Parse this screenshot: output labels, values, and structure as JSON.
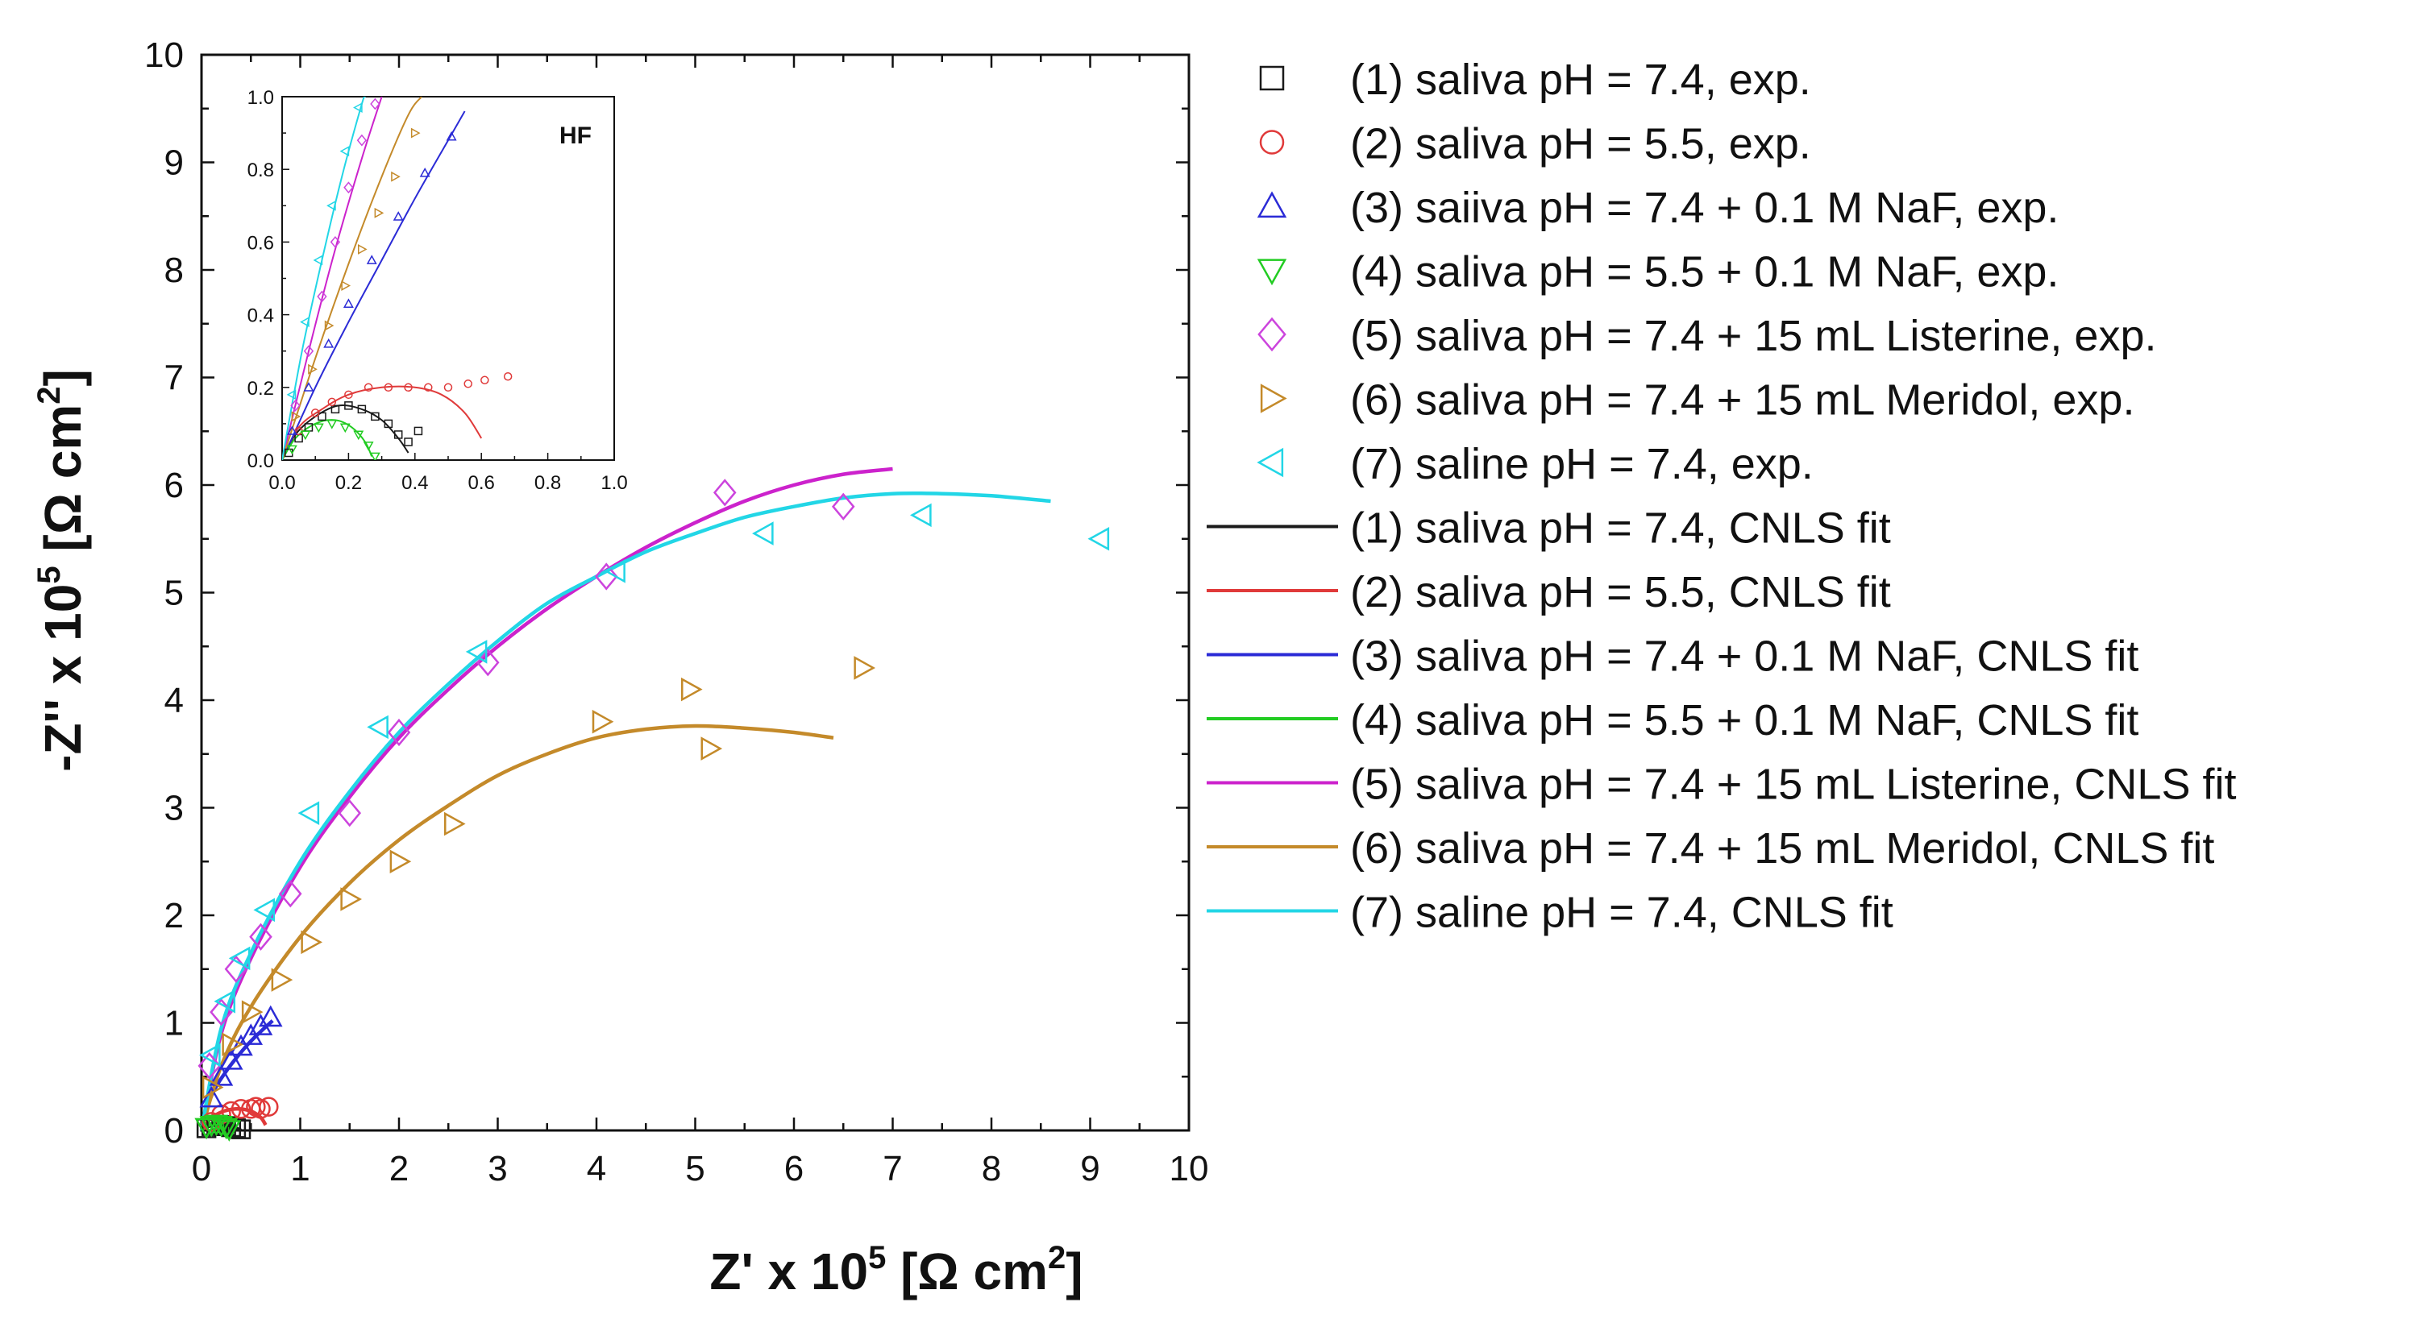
{
  "chart_data": {
    "type": "scatter",
    "title": "",
    "xlabel": "Z' x 10",
    "ylabel": "-Z'' x 10",
    "exponent": "5",
    "unit": "[Ω cm",
    "unit_power": "2",
    "unit_close": "]",
    "xlim": [
      0,
      10
    ],
    "ylim": [
      0,
      10
    ],
    "xticks": [
      "0",
      "1",
      "2",
      "3",
      "4",
      "5",
      "6",
      "7",
      "8",
      "9",
      "10"
    ],
    "yticks": [
      "0",
      "1",
      "2",
      "3",
      "4",
      "5",
      "6",
      "7",
      "8",
      "9",
      "10"
    ],
    "legend_position": "right",
    "exp_series": [
      {
        "name": "(1) saliva pH = 7.4, exp.",
        "marker": "square",
        "color": "#1a1a1a",
        "points": [
          [
            0.05,
            0.02
          ],
          [
            0.1,
            0.04
          ],
          [
            0.15,
            0.05
          ],
          [
            0.2,
            0.05
          ],
          [
            0.25,
            0.04
          ],
          [
            0.3,
            0.03
          ],
          [
            0.35,
            0.02
          ],
          [
            0.4,
            0.01
          ]
        ]
      },
      {
        "name": "(2) saliva pH = 5.5, exp.",
        "marker": "circle",
        "color": "#e03a3a",
        "points": [
          [
            0.1,
            0.08
          ],
          [
            0.2,
            0.15
          ],
          [
            0.3,
            0.18
          ],
          [
            0.4,
            0.2
          ],
          [
            0.5,
            0.2
          ],
          [
            0.55,
            0.22
          ],
          [
            0.6,
            0.2
          ],
          [
            0.68,
            0.22
          ]
        ]
      },
      {
        "name": "(3) saiiva pH = 7.4 + 0.1 M NaF, exp.",
        "marker": "triangle-up",
        "color": "#2b2bd6",
        "points": [
          [
            0.1,
            0.3
          ],
          [
            0.2,
            0.5
          ],
          [
            0.3,
            0.65
          ],
          [
            0.4,
            0.78
          ],
          [
            0.5,
            0.88
          ],
          [
            0.6,
            0.97
          ],
          [
            0.7,
            1.05
          ]
        ]
      },
      {
        "name": "(4) saliva pH = 5.5 + 0.1 M NaF, exp.",
        "marker": "triangle-down",
        "color": "#22cc22",
        "points": [
          [
            0.05,
            0.03
          ],
          [
            0.1,
            0.05
          ],
          [
            0.15,
            0.06
          ],
          [
            0.2,
            0.05
          ],
          [
            0.25,
            0.03
          ],
          [
            0.28,
            0.01
          ]
        ]
      },
      {
        "name": "(5) saliva pH = 7.4 + 15 mL Listerine, exp.",
        "marker": "diamond",
        "color": "#cc44dd",
        "points": [
          [
            0.08,
            0.6
          ],
          [
            0.2,
            1.1
          ],
          [
            0.35,
            1.5
          ],
          [
            0.6,
            1.8
          ],
          [
            0.9,
            2.2
          ],
          [
            1.5,
            2.95
          ],
          [
            2.0,
            3.7
          ],
          [
            2.9,
            4.35
          ],
          [
            4.1,
            5.15
          ],
          [
            5.3,
            5.93
          ],
          [
            6.5,
            5.8
          ]
        ]
      },
      {
        "name": "(6) saliva pH = 7.4 + 15 mL Meridol, exp.",
        "marker": "triangle-right",
        "color": "#c48a2a",
        "points": [
          [
            0.1,
            0.4
          ],
          [
            0.3,
            0.8
          ],
          [
            0.5,
            1.1
          ],
          [
            0.8,
            1.4
          ],
          [
            1.1,
            1.75
          ],
          [
            1.5,
            2.15
          ],
          [
            2.0,
            2.5
          ],
          [
            2.55,
            2.85
          ],
          [
            4.05,
            3.8
          ],
          [
            4.95,
            4.1
          ],
          [
            5.15,
            3.55
          ],
          [
            6.7,
            4.3
          ]
        ]
      },
      {
        "name": "(7) saline pH = 7.4, exp.",
        "marker": "triangle-left",
        "color": "#22d6e6",
        "points": [
          [
            0.1,
            0.7
          ],
          [
            0.25,
            1.2
          ],
          [
            0.4,
            1.6
          ],
          [
            0.65,
            2.05
          ],
          [
            1.1,
            2.95
          ],
          [
            1.8,
            3.75
          ],
          [
            2.8,
            4.45
          ],
          [
            4.2,
            5.2
          ],
          [
            5.7,
            5.55
          ],
          [
            7.3,
            5.72
          ],
          [
            9.1,
            5.5
          ]
        ]
      }
    ],
    "fit_series": [
      {
        "name": "(1) saliva pH = 7.4, CNLS fit",
        "color": "#1a1a1a",
        "points": [
          [
            0,
            0
          ],
          [
            0.05,
            0.03
          ],
          [
            0.12,
            0.05
          ],
          [
            0.2,
            0.055
          ],
          [
            0.28,
            0.045
          ],
          [
            0.35,
            0.02
          ],
          [
            0.4,
            0
          ]
        ]
      },
      {
        "name": "(2) saliva pH = 5.5, CNLS fit",
        "color": "#e03a3a",
        "points": [
          [
            0,
            0
          ],
          [
            0.08,
            0.1
          ],
          [
            0.2,
            0.17
          ],
          [
            0.35,
            0.2
          ],
          [
            0.5,
            0.18
          ],
          [
            0.6,
            0.12
          ],
          [
            0.65,
            0.05
          ]
        ]
      },
      {
        "name": "(3) saliva pH = 7.4 + 0.1 M NaF, CNLS fit",
        "color": "#2b2bd6",
        "points": [
          [
            0,
            0
          ],
          [
            0.1,
            0.32
          ],
          [
            0.25,
            0.55
          ],
          [
            0.45,
            0.78
          ],
          [
            0.6,
            0.92
          ],
          [
            0.72,
            1.02
          ]
        ]
      },
      {
        "name": "(4) saliva pH = 5.5 + 0.1 M NaF, CNLS fit",
        "color": "#22cc22",
        "points": [
          [
            0,
            0
          ],
          [
            0.05,
            0.04
          ],
          [
            0.12,
            0.06
          ],
          [
            0.2,
            0.05
          ],
          [
            0.26,
            0.02
          ],
          [
            0.28,
            0
          ]
        ]
      },
      {
        "name": "(5) saliva pH = 7.4 + 15 mL Listerine, CNLS fit",
        "color": "#cc22cc",
        "points": [
          [
            0,
            0
          ],
          [
            0.2,
            0.9
          ],
          [
            0.5,
            1.6
          ],
          [
            1,
            2.45
          ],
          [
            1.5,
            3.1
          ],
          [
            2,
            3.65
          ],
          [
            2.5,
            4.1
          ],
          [
            3,
            4.5
          ],
          [
            3.5,
            4.85
          ],
          [
            4,
            5.15
          ],
          [
            4.5,
            5.42
          ],
          [
            5,
            5.65
          ],
          [
            5.5,
            5.85
          ],
          [
            6,
            6.0
          ],
          [
            6.5,
            6.1
          ],
          [
            7,
            6.15
          ]
        ]
      },
      {
        "name": "(6) saliva pH = 7.4 + 15 mL Meridol, CNLS fit",
        "color": "#c48a2a",
        "points": [
          [
            0,
            0
          ],
          [
            0.2,
            0.6
          ],
          [
            0.5,
            1.15
          ],
          [
            1,
            1.8
          ],
          [
            1.5,
            2.3
          ],
          [
            2,
            2.7
          ],
          [
            2.5,
            3.02
          ],
          [
            3,
            3.3
          ],
          [
            3.5,
            3.5
          ],
          [
            4,
            3.65
          ],
          [
            4.5,
            3.73
          ],
          [
            5,
            3.76
          ],
          [
            5.5,
            3.74
          ],
          [
            6,
            3.7
          ],
          [
            6.4,
            3.65
          ]
        ]
      },
      {
        "name": "(7) saline pH = 7.4, CNLS fit",
        "color": "#22d6e6",
        "points": [
          [
            0,
            0
          ],
          [
            0.2,
            0.95
          ],
          [
            0.5,
            1.65
          ],
          [
            1,
            2.5
          ],
          [
            1.5,
            3.15
          ],
          [
            2,
            3.7
          ],
          [
            2.5,
            4.15
          ],
          [
            3,
            4.55
          ],
          [
            3.5,
            4.9
          ],
          [
            4,
            5.15
          ],
          [
            4.5,
            5.38
          ],
          [
            5,
            5.55
          ],
          [
            5.5,
            5.7
          ],
          [
            6,
            5.8
          ],
          [
            6.5,
            5.88
          ],
          [
            7,
            5.92
          ],
          [
            7.5,
            5.92
          ],
          [
            8,
            5.9
          ],
          [
            8.6,
            5.85
          ]
        ]
      }
    ],
    "inset": {
      "label": "HF",
      "xlim": [
        0,
        1.0
      ],
      "ylim": [
        0,
        1.0
      ],
      "xticks": [
        "0.0",
        "0.2",
        "0.4",
        "0.6",
        "0.8",
        "1.0"
      ],
      "yticks": [
        "0.0",
        "0.2",
        "0.4",
        "0.6",
        "0.8",
        "1.0"
      ],
      "exp_series": [
        {
          "marker": "square",
          "color": "#1a1a1a",
          "points": [
            [
              0.02,
              0.02
            ],
            [
              0.05,
              0.06
            ],
            [
              0.08,
              0.09
            ],
            [
              0.12,
              0.12
            ],
            [
              0.16,
              0.14
            ],
            [
              0.2,
              0.15
            ],
            [
              0.24,
              0.14
            ],
            [
              0.28,
              0.12
            ],
            [
              0.32,
              0.1
            ],
            [
              0.35,
              0.07
            ],
            [
              0.38,
              0.05
            ],
            [
              0.41,
              0.08
            ]
          ]
        },
        {
          "marker": "circle",
          "color": "#e03a3a",
          "points": [
            [
              0.05,
              0.08
            ],
            [
              0.1,
              0.13
            ],
            [
              0.15,
              0.16
            ],
            [
              0.2,
              0.18
            ],
            [
              0.26,
              0.2
            ],
            [
              0.32,
              0.2
            ],
            [
              0.38,
              0.2
            ],
            [
              0.44,
              0.2
            ],
            [
              0.5,
              0.2
            ],
            [
              0.56,
              0.21
            ],
            [
              0.61,
              0.22
            ],
            [
              0.68,
              0.23
            ]
          ]
        },
        {
          "marker": "triangle-up",
          "color": "#2b2bd6",
          "points": [
            [
              0.03,
              0.08
            ],
            [
              0.08,
              0.2
            ],
            [
              0.14,
              0.32
            ],
            [
              0.2,
              0.43
            ],
            [
              0.27,
              0.55
            ],
            [
              0.35,
              0.67
            ],
            [
              0.43,
              0.79
            ],
            [
              0.51,
              0.89
            ]
          ]
        },
        {
          "marker": "triangle-down",
          "color": "#22cc22",
          "points": [
            [
              0.03,
              0.03
            ],
            [
              0.07,
              0.07
            ],
            [
              0.11,
              0.09
            ],
            [
              0.15,
              0.1
            ],
            [
              0.19,
              0.09
            ],
            [
              0.23,
              0.07
            ],
            [
              0.26,
              0.04
            ],
            [
              0.28,
              0.01
            ]
          ]
        },
        {
          "marker": "diamond",
          "color": "#cc44dd",
          "points": [
            [
              0.04,
              0.15
            ],
            [
              0.08,
              0.3
            ],
            [
              0.12,
              0.45
            ],
            [
              0.16,
              0.6
            ],
            [
              0.2,
              0.75
            ],
            [
              0.24,
              0.88
            ],
            [
              0.28,
              0.98
            ]
          ]
        },
        {
          "marker": "triangle-right",
          "color": "#c48a2a",
          "points": [
            [
              0.04,
              0.12
            ],
            [
              0.09,
              0.25
            ],
            [
              0.14,
              0.37
            ],
            [
              0.19,
              0.48
            ],
            [
              0.24,
              0.58
            ],
            [
              0.29,
              0.68
            ],
            [
              0.34,
              0.78
            ],
            [
              0.4,
              0.9
            ]
          ]
        },
        {
          "marker": "triangle-left",
          "color": "#22d6e6",
          "points": [
            [
              0.03,
              0.18
            ],
            [
              0.07,
              0.38
            ],
            [
              0.11,
              0.55
            ],
            [
              0.15,
              0.7
            ],
            [
              0.19,
              0.85
            ],
            [
              0.23,
              0.97
            ]
          ]
        }
      ],
      "fit_series": [
        {
          "color": "#1a1a1a",
          "points": [
            [
              0,
              0
            ],
            [
              0.04,
              0.07
            ],
            [
              0.1,
              0.12
            ],
            [
              0.17,
              0.15
            ],
            [
              0.24,
              0.14
            ],
            [
              0.3,
              0.11
            ],
            [
              0.35,
              0.06
            ],
            [
              0.38,
              0.02
            ]
          ]
        },
        {
          "color": "#e03a3a",
          "points": [
            [
              0,
              0
            ],
            [
              0.05,
              0.09
            ],
            [
              0.12,
              0.14
            ],
            [
              0.2,
              0.18
            ],
            [
              0.3,
              0.2
            ],
            [
              0.4,
              0.2
            ],
            [
              0.48,
              0.18
            ],
            [
              0.55,
              0.13
            ],
            [
              0.6,
              0.06
            ]
          ]
        },
        {
          "color": "#2b2bd6",
          "points": [
            [
              0,
              0
            ],
            [
              0.1,
              0.2
            ],
            [
              0.2,
              0.38
            ],
            [
              0.3,
              0.55
            ],
            [
              0.4,
              0.72
            ],
            [
              0.5,
              0.88
            ],
            [
              0.55,
              0.96
            ]
          ]
        },
        {
          "color": "#22cc22",
          "points": [
            [
              0,
              0
            ],
            [
              0.04,
              0.06
            ],
            [
              0.1,
              0.1
            ],
            [
              0.16,
              0.11
            ],
            [
              0.21,
              0.09
            ],
            [
              0.25,
              0.05
            ],
            [
              0.27,
              0.01
            ]
          ]
        },
        {
          "color": "#cc22cc",
          "points": [
            [
              0,
              0
            ],
            [
              0.08,
              0.3
            ],
            [
              0.16,
              0.58
            ],
            [
              0.24,
              0.83
            ],
            [
              0.3,
              1.0
            ]
          ]
        },
        {
          "color": "#c48a2a",
          "points": [
            [
              0,
              0
            ],
            [
              0.1,
              0.28
            ],
            [
              0.2,
              0.54
            ],
            [
              0.3,
              0.78
            ],
            [
              0.38,
              0.95
            ],
            [
              0.42,
              1.0
            ]
          ]
        },
        {
          "color": "#22d6e6",
          "points": [
            [
              0,
              0
            ],
            [
              0.06,
              0.3
            ],
            [
              0.12,
              0.55
            ],
            [
              0.18,
              0.78
            ],
            [
              0.24,
              0.98
            ],
            [
              0.25,
              1.0
            ]
          ]
        }
      ]
    }
  }
}
